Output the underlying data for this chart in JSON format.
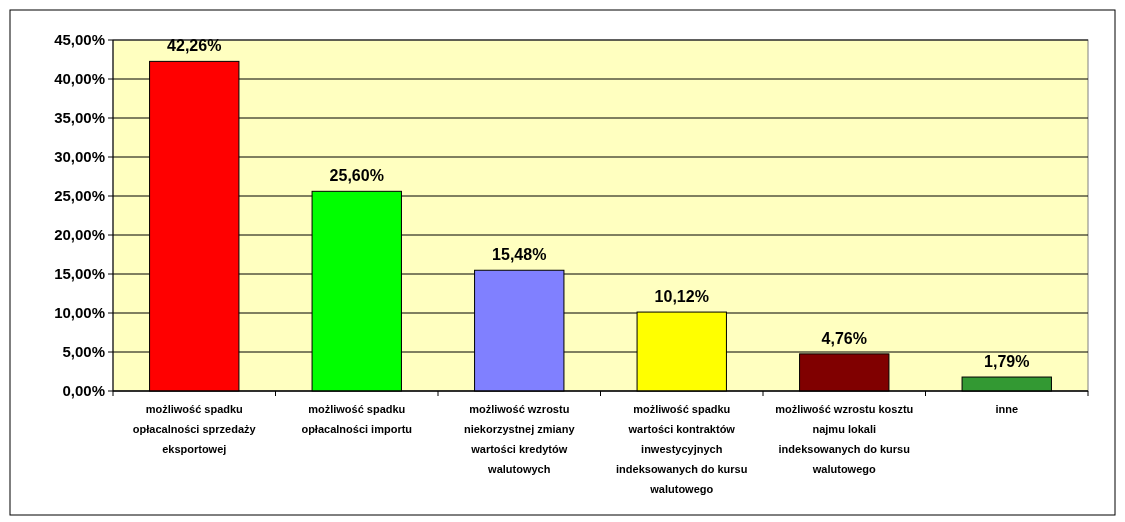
{
  "chart_data": {
    "type": "bar",
    "categories": [
      "możliwość spadku opłacalności sprzedaży eksportowej",
      "możliwość spadku opłacalności importu",
      "możliwość wzrostu niekorzystnej zmiany wartości kredytów walutowych",
      "możliwość spadku wartości kontraktów inwestycyjnych indeksowanych do kursu walutowego",
      "możliwość wzrostu kosztu najmu lokali indeksowanych do kursu walutowego",
      "inne"
    ],
    "values": [
      42.26,
      25.6,
      15.48,
      10.12,
      4.76,
      1.79
    ],
    "colors": [
      "#ff0000",
      "#00ff00",
      "#8080ff",
      "#ffff00",
      "#800000",
      "#339933"
    ],
    "value_labels": [
      "42,26%",
      "25,60%",
      "15,48%",
      "10,12%",
      "4,76%",
      "1,79%"
    ],
    "ylim": [
      0,
      45
    ],
    "yticks": [
      {
        "value": 0,
        "label": "0,00%"
      },
      {
        "value": 5,
        "label": "5,00%"
      },
      {
        "value": 10,
        "label": "10,00%"
      },
      {
        "value": 15,
        "label": "15,00%"
      },
      {
        "value": 20,
        "label": "20,00%"
      },
      {
        "value": 25,
        "label": "25,00%"
      },
      {
        "value": 30,
        "label": "30,00%"
      },
      {
        "value": 35,
        "label": "35,00%"
      },
      {
        "value": 40,
        "label": "40,00%"
      },
      {
        "value": 45,
        "label": "45,00%"
      }
    ],
    "grid": "y"
  }
}
